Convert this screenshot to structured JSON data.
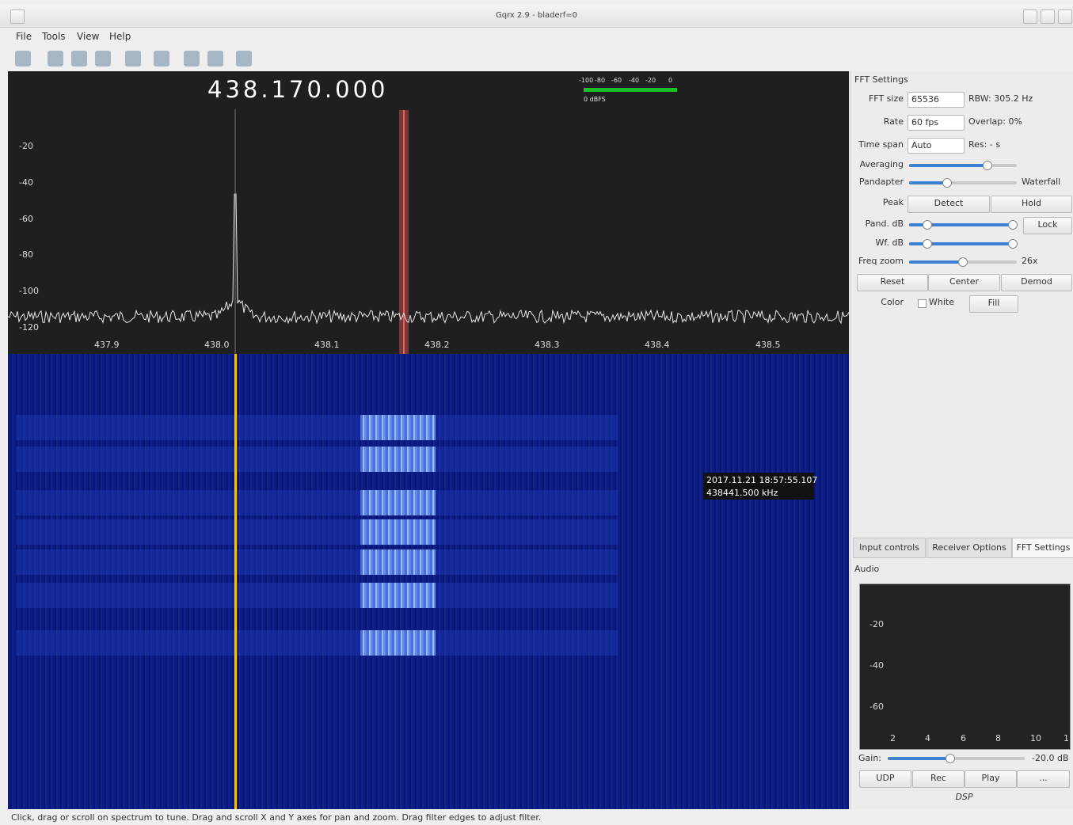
{
  "window": {
    "title": "Gqrx 2.9 - bladerf=0"
  },
  "menu": [
    "File",
    "Tools",
    "View",
    "Help"
  ],
  "frequency": "438.170.000",
  "meter": {
    "ticks": [
      "-100",
      "-80",
      "-60",
      "-40",
      "-20",
      "0"
    ],
    "label": "0 dBFS"
  },
  "spectrum": {
    "yticks": [
      "-20",
      "-40",
      "-60",
      "-80",
      "-100",
      "-120"
    ],
    "xticks": [
      "437.9",
      "438.0",
      "438.1",
      "438.2",
      "438.3",
      "438.4",
      "438.5"
    ]
  },
  "tooltip": {
    "time": "2017.11.21 18:57:55.107",
    "freq": "438441.500 kHz"
  },
  "fft_settings": {
    "title": "FFT Settings",
    "fft_size": {
      "label": "FFT size",
      "value": "65536",
      "info": "RBW: 305.2 Hz"
    },
    "rate": {
      "label": "Rate",
      "value": "60 fps",
      "info": "Overlap: 0%"
    },
    "time_span": {
      "label": "Time span",
      "value": "Auto",
      "info": "Res: - s"
    },
    "averaging": {
      "label": "Averaging"
    },
    "pandapter": {
      "label": "Pandapter",
      "info": "Waterfall"
    },
    "peak": {
      "label": "Peak",
      "buttons": [
        "Detect",
        "Hold"
      ]
    },
    "pand_db": {
      "label": "Pand. dB",
      "button": "Lock"
    },
    "wf_db": {
      "label": "Wf. dB"
    },
    "freq_zoom": {
      "label": "Freq zoom",
      "info": "26x"
    },
    "buttons": [
      "Reset",
      "Center",
      "Demod"
    ],
    "color": {
      "label": "Color",
      "checkbox": "White",
      "button": "Fill"
    }
  },
  "tabs": [
    "Input controls",
    "Receiver Options",
    "FFT Settings"
  ],
  "audio": {
    "title": "Audio",
    "yticks": [
      "-20",
      "-40",
      "-60"
    ],
    "xticks": [
      "2",
      "4",
      "6",
      "8",
      "10",
      "1"
    ],
    "gain": {
      "label": "Gain:",
      "value": "-20.0 dB"
    },
    "buttons": [
      "UDP",
      "Rec",
      "Play",
      "..."
    ],
    "dsp": "DSP"
  },
  "status": "Click, drag or scroll on spectrum to tune. Drag and scroll X and Y axes for pan and zoom. Drag filter edges to adjust filter."
}
